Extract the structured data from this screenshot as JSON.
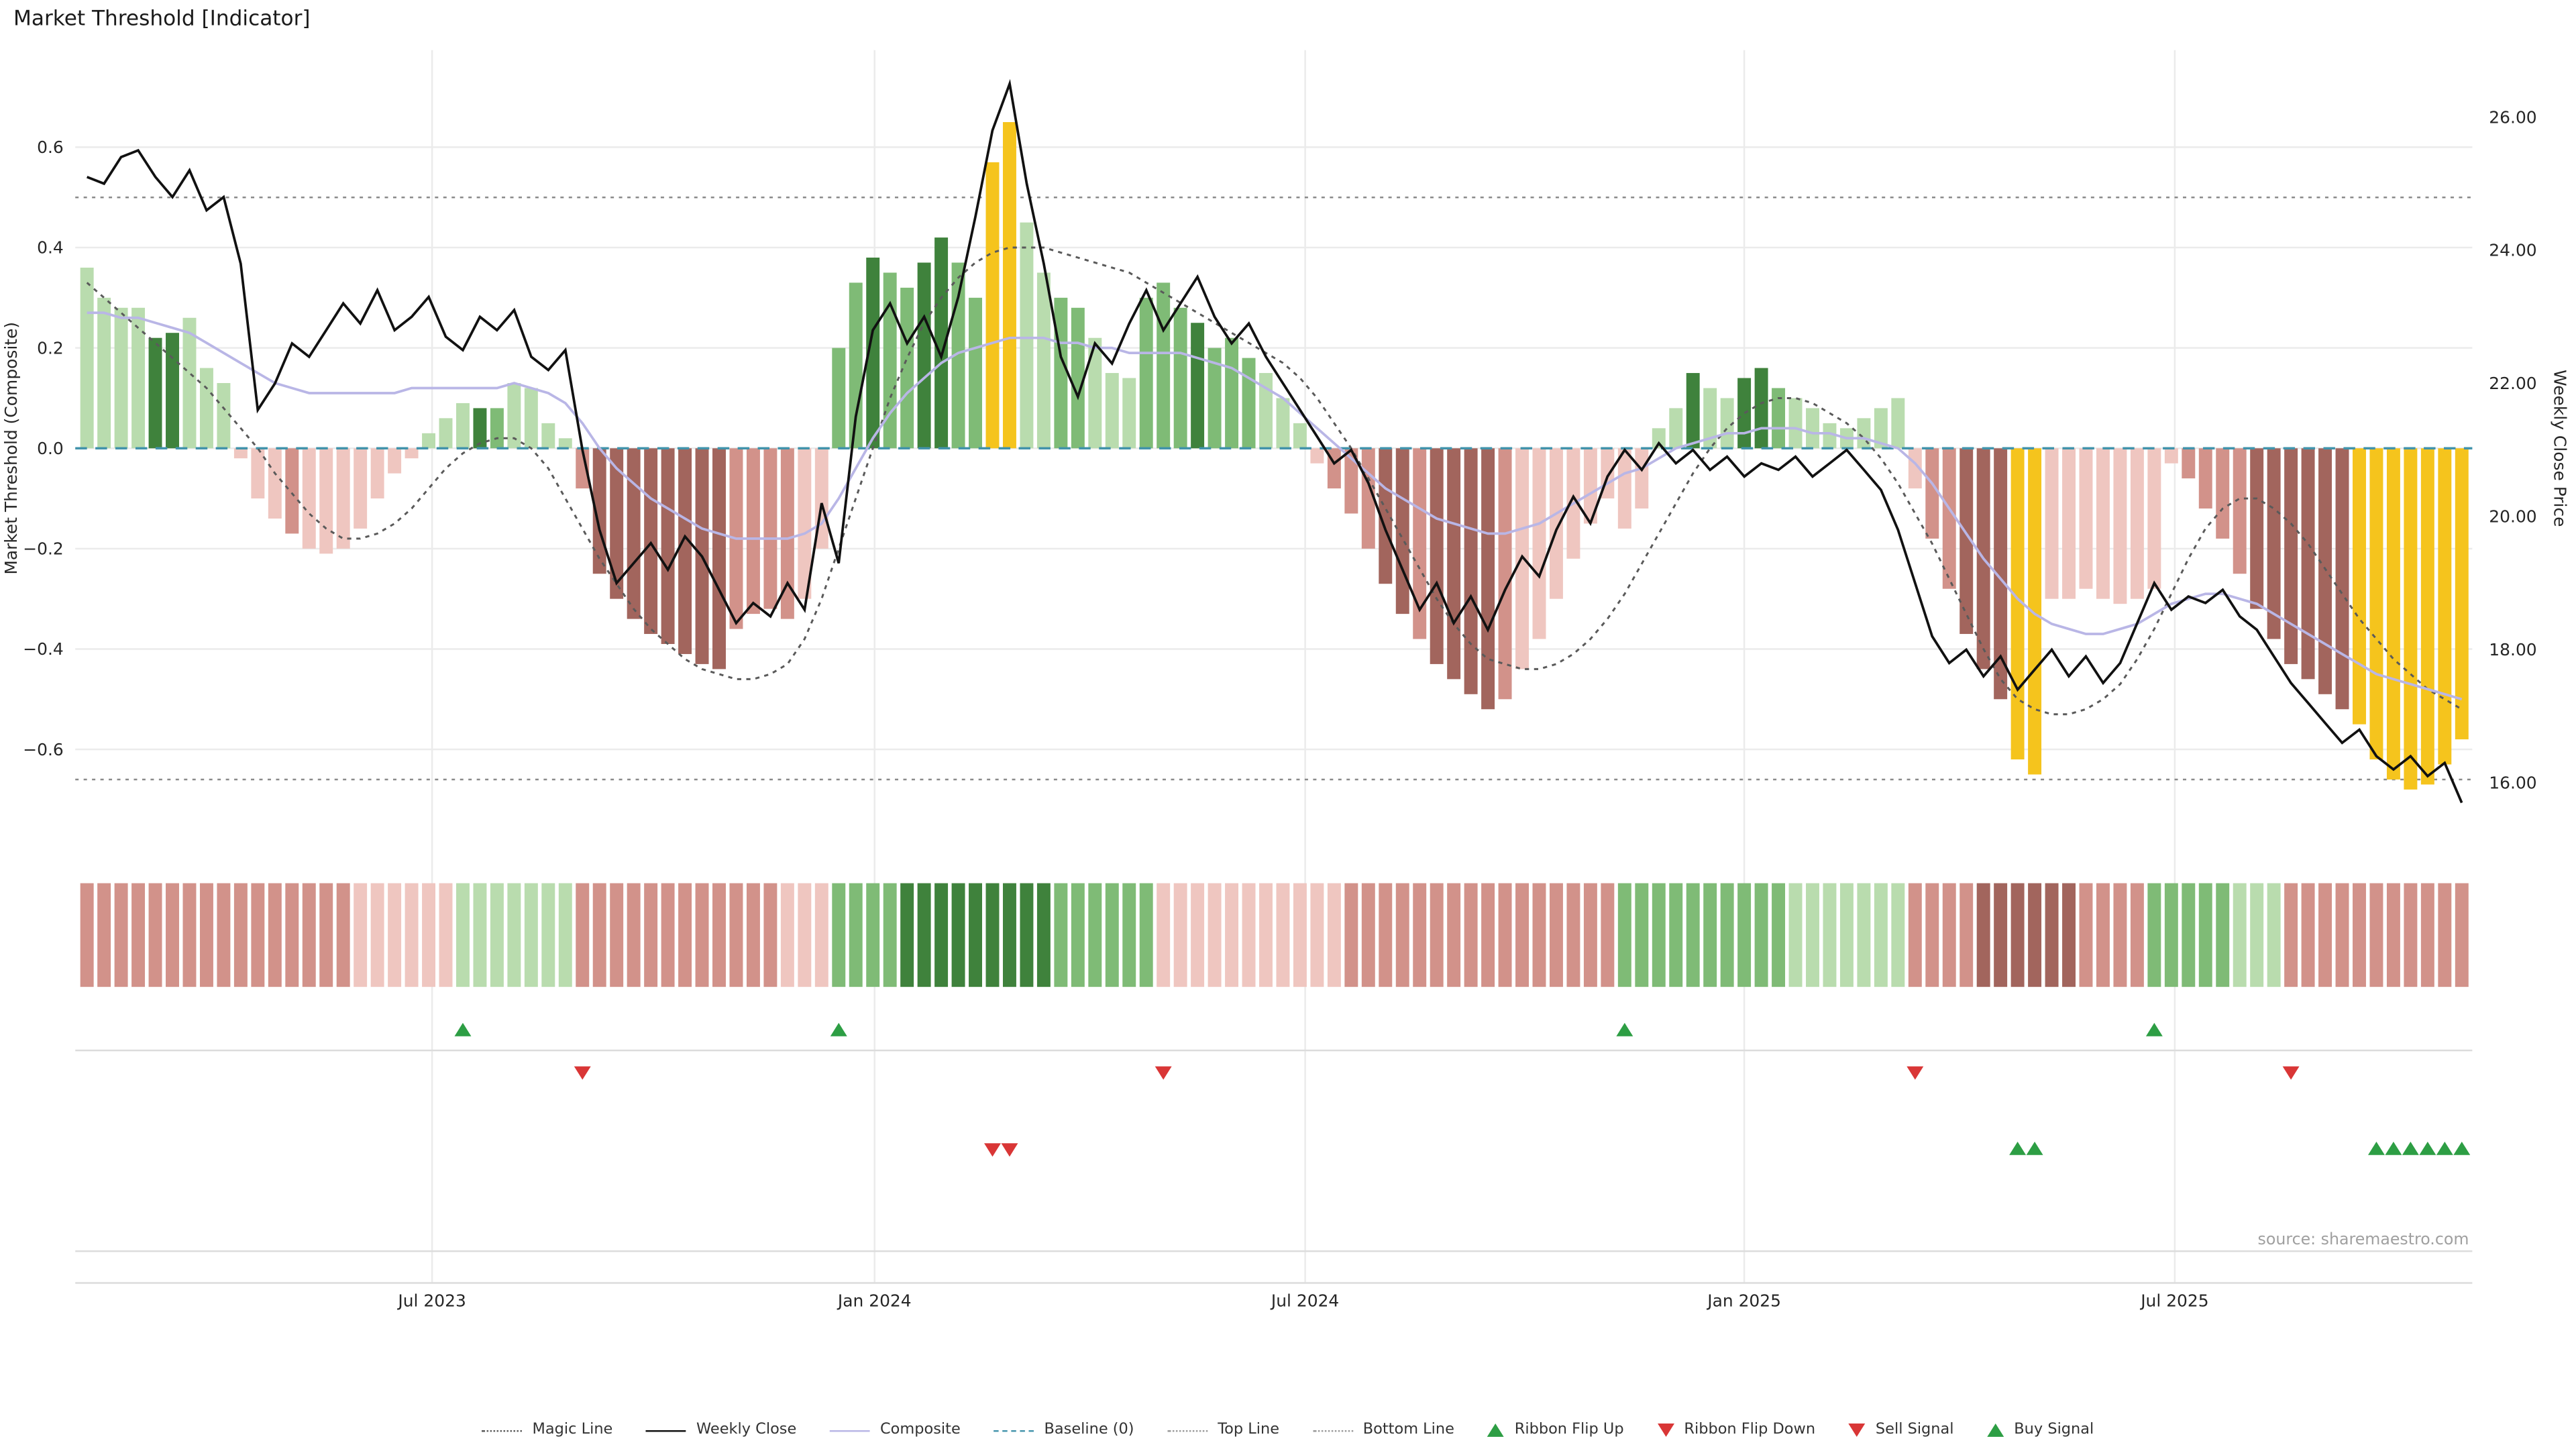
{
  "title": "Market Threshold [Indicator]",
  "source": "source: sharemaestro.com",
  "axes": {
    "left_label": "Market Threshold (Composite)",
    "right_label": "Weekly Close Price",
    "left_tick_values": [
      0.6,
      0.4,
      0.2,
      0,
      -0.2,
      -0.4,
      -0.6
    ],
    "left_tick_labels": [
      "0.6",
      "0.4",
      "0.2",
      "0.0",
      "−0.2",
      "−0.4",
      "−0.6"
    ],
    "right_tick_values": [
      26,
      24,
      22,
      20,
      18,
      16
    ],
    "right_tick_labels": [
      "26.00",
      "24.00",
      "22.00",
      "20.00",
      "18.00",
      "16.00"
    ],
    "x_tick_labels": [
      "Jul 2023",
      "Jan 2024",
      "Jul 2024",
      "Jan 2025",
      "Jul 2025"
    ]
  },
  "legend": [
    {
      "label": "Magic Line",
      "swatch": "dotted",
      "color": "#5a5a5a"
    },
    {
      "label": "Weekly Close",
      "swatch": "solid",
      "color": "#111111"
    },
    {
      "label": "Composite",
      "swatch": "solid",
      "color": "#b9b6e6"
    },
    {
      "label": "Baseline (0)",
      "swatch": "dashed",
      "color": "#4293ab"
    },
    {
      "label": "Top Line",
      "swatch": "dotted",
      "color": "#999999"
    },
    {
      "label": "Bottom Line",
      "swatch": "dotted",
      "color": "#999999"
    },
    {
      "label": "Ribbon Flip Up",
      "swatch": "tri-up",
      "color": "#2d9e44"
    },
    {
      "label": "Ribbon Flip Down",
      "swatch": "tri-down",
      "color": "#d93636"
    },
    {
      "label": "Sell Signal",
      "swatch": "tri-down",
      "color": "#d93636"
    },
    {
      "label": "Buy Signal",
      "swatch": "tri-up",
      "color": "#2d9e44"
    }
  ],
  "chart_data": {
    "type": "bar+line",
    "x_unit": "weeks",
    "n_points": 140,
    "x_tick_indices": [
      20.2,
      46.1,
      71.3,
      97.0,
      122.2
    ],
    "left_axis_range": [
      -0.75,
      0.72
    ],
    "right_axis_range": [
      15.4,
      26.8
    ],
    "top_line": 0.5,
    "bottom_line": -0.66,
    "baseline": 0,
    "palette": {
      "g1": "#b9dcae",
      "g2": "#7fbb76",
      "g3": "#3f823c",
      "r1": "#efc6c0",
      "r2": "#d2928a",
      "r3": "#a2655d",
      "y": "#f5c41d",
      "baseline": "#4293ab",
      "composite": "#b9b6e6",
      "signal_up": "#2d9e44",
      "signal_down": "#d93636"
    },
    "bars": {
      "values": [
        0.36,
        0.3,
        0.28,
        0.28,
        0.22,
        0.23,
        0.26,
        0.16,
        0.13,
        -0.02,
        -0.1,
        -0.14,
        -0.17,
        -0.2,
        -0.21,
        -0.2,
        -0.16,
        -0.1,
        -0.05,
        -0.02,
        0.03,
        0.06,
        0.09,
        0.08,
        0.08,
        0.13,
        0.12,
        0.05,
        0.02,
        -0.08,
        -0.25,
        -0.3,
        -0.34,
        -0.37,
        -0.39,
        -0.41,
        -0.43,
        -0.44,
        -0.36,
        -0.33,
        -0.32,
        -0.34,
        -0.3,
        -0.2,
        0.2,
        0.33,
        0.38,
        0.35,
        0.32,
        0.37,
        0.42,
        0.37,
        0.3,
        0.57,
        0.65,
        0.45,
        0.35,
        0.3,
        0.28,
        0.22,
        0.15,
        0.14,
        0.3,
        0.33,
        0.28,
        0.25,
        0.2,
        0.22,
        0.18,
        0.15,
        0.1,
        0.05,
        -0.03,
        -0.08,
        -0.13,
        -0.2,
        -0.27,
        -0.33,
        -0.38,
        -0.43,
        -0.46,
        -0.49,
        -0.52,
        -0.5,
        -0.44,
        -0.38,
        -0.3,
        -0.22,
        -0.15,
        -0.1,
        -0.16,
        -0.12,
        0.04,
        0.08,
        0.15,
        0.12,
        0.1,
        0.14,
        0.16,
        0.12,
        0.1,
        0.08,
        0.05,
        0.04,
        0.06,
        0.08,
        0.1,
        -0.08,
        -0.18,
        -0.28,
        -0.37,
        -0.44,
        -0.5,
        -0.62,
        -0.65,
        -0.3,
        -0.3,
        -0.28,
        -0.3,
        -0.31,
        -0.3,
        -0.28,
        -0.03,
        -0.06,
        -0.12,
        -0.18,
        -0.25,
        -0.32,
        -0.38,
        -0.43,
        -0.46,
        -0.49,
        -0.52,
        -0.55,
        -0.62,
        -0.66,
        -0.68,
        -0.67,
        -0.63,
        -0.58
      ],
      "colors": [
        "g1",
        "g1",
        "g1",
        "g1",
        "g3",
        "g3",
        "g1",
        "g1",
        "g1",
        "r1",
        "r1",
        "r1",
        "r2",
        "r1",
        "r1",
        "r1",
        "r1",
        "r1",
        "r1",
        "r1",
        "g1",
        "g1",
        "g1",
        "g3",
        "g2",
        "g1",
        "g1",
        "g1",
        "g1",
        "r2",
        "r3",
        "r3",
        "r3",
        "r3",
        "r3",
        "r3",
        "r3",
        "r3",
        "r2",
        "r2",
        "r2",
        "r2",
        "r1",
        "r1",
        "g2",
        "g2",
        "g3",
        "g2",
        "g2",
        "g3",
        "g3",
        "g2",
        "g2",
        "y",
        "y",
        "g1",
        "g1",
        "g2",
        "g2",
        "g1",
        "g1",
        "g1",
        "g2",
        "g2",
        "g2",
        "g3",
        "g2",
        "g2",
        "g2",
        "g1",
        "g1",
        "g1",
        "r1",
        "r2",
        "r2",
        "r2",
        "r3",
        "r3",
        "r2",
        "r3",
        "r3",
        "r3",
        "r3",
        "r2",
        "r1",
        "r1",
        "r1",
        "r1",
        "r1",
        "r1",
        "r1",
        "r1",
        "g1",
        "g1",
        "g3",
        "g1",
        "g1",
        "g3",
        "g3",
        "g2",
        "g1",
        "g1",
        "g1",
        "g1",
        "g1",
        "g1",
        "g1",
        "r1",
        "r2",
        "r2",
        "r3",
        "r3",
        "r3",
        "y",
        "y",
        "r1",
        "r1",
        "r1",
        "r1",
        "r1",
        "r1",
        "r1",
        "r1",
        "r2",
        "r2",
        "r2",
        "r2",
        "r3",
        "r3",
        "r3",
        "r3",
        "r3",
        "r3",
        "y",
        "y",
        "y",
        "y",
        "y",
        "y",
        "y"
      ]
    },
    "weekly_close": [
      25.1,
      25.0,
      25.4,
      25.5,
      25.1,
      24.8,
      25.2,
      24.6,
      24.8,
      23.8,
      21.6,
      22.0,
      22.6,
      22.4,
      22.8,
      23.2,
      22.9,
      23.4,
      22.8,
      23.0,
      23.3,
      22.7,
      22.5,
      23.0,
      22.8,
      23.1,
      22.4,
      22.2,
      22.5,
      21.0,
      19.8,
      19.0,
      19.3,
      19.6,
      19.2,
      19.7,
      19.4,
      18.9,
      18.4,
      18.7,
      18.5,
      19.0,
      18.6,
      20.2,
      19.3,
      21.5,
      22.8,
      23.2,
      22.6,
      23.0,
      22.4,
      23.3,
      24.5,
      25.8,
      26.5,
      25.0,
      23.8,
      22.4,
      21.8,
      22.6,
      22.3,
      22.9,
      23.4,
      22.8,
      23.2,
      23.6,
      23.0,
      22.6,
      22.9,
      22.4,
      22.0,
      21.6,
      21.2,
      20.8,
      21.0,
      20.5,
      19.8,
      19.2,
      18.6,
      19.0,
      18.4,
      18.8,
      18.3,
      18.9,
      19.4,
      19.1,
      19.8,
      20.3,
      19.9,
      20.6,
      21.0,
      20.7,
      21.1,
      20.8,
      21.0,
      20.7,
      20.9,
      20.6,
      20.8,
      20.7,
      20.9,
      20.6,
      20.8,
      21.0,
      20.7,
      20.4,
      19.8,
      19.0,
      18.2,
      17.8,
      18.0,
      17.6,
      17.9,
      17.4,
      17.7,
      18.0,
      17.6,
      17.9,
      17.5,
      17.8,
      18.4,
      19.0,
      18.6,
      18.8,
      18.7,
      18.9,
      18.5,
      18.3,
      17.9,
      17.5,
      17.2,
      16.9,
      16.6,
      16.8,
      16.4,
      16.2,
      16.4,
      16.1,
      16.3,
      15.7
    ],
    "composite": [
      0.27,
      0.27,
      0.26,
      0.26,
      0.25,
      0.24,
      0.23,
      0.21,
      0.19,
      0.17,
      0.15,
      0.13,
      0.12,
      0.11,
      0.11,
      0.11,
      0.11,
      0.11,
      0.11,
      0.12,
      0.12,
      0.12,
      0.12,
      0.12,
      0.12,
      0.13,
      0.12,
      0.11,
      0.09,
      0.05,
      0.0,
      -0.04,
      -0.07,
      -0.1,
      -0.12,
      -0.14,
      -0.16,
      -0.17,
      -0.18,
      -0.18,
      -0.18,
      -0.18,
      -0.17,
      -0.15,
      -0.1,
      -0.04,
      0.02,
      0.07,
      0.11,
      0.14,
      0.17,
      0.19,
      0.2,
      0.21,
      0.22,
      0.22,
      0.22,
      0.21,
      0.21,
      0.2,
      0.2,
      0.19,
      0.19,
      0.19,
      0.19,
      0.18,
      0.17,
      0.16,
      0.14,
      0.12,
      0.1,
      0.07,
      0.04,
      0.01,
      -0.02,
      -0.05,
      -0.08,
      -0.1,
      -0.12,
      -0.14,
      -0.15,
      -0.16,
      -0.17,
      -0.17,
      -0.16,
      -0.15,
      -0.13,
      -0.11,
      -0.09,
      -0.07,
      -0.05,
      -0.04,
      -0.02,
      0.0,
      0.01,
      0.02,
      0.03,
      0.03,
      0.04,
      0.04,
      0.04,
      0.03,
      0.03,
      0.02,
      0.02,
      0.01,
      0.0,
      -0.03,
      -0.07,
      -0.12,
      -0.17,
      -0.22,
      -0.26,
      -0.3,
      -0.33,
      -0.35,
      -0.36,
      -0.37,
      -0.37,
      -0.36,
      -0.35,
      -0.33,
      -0.31,
      -0.3,
      -0.29,
      -0.29,
      -0.3,
      -0.31,
      -0.33,
      -0.35,
      -0.37,
      -0.39,
      -0.41,
      -0.43,
      -0.45,
      -0.46,
      -0.47,
      -0.48,
      -0.49,
      -0.5
    ],
    "magic_line": [
      0.33,
      0.3,
      0.27,
      0.24,
      0.21,
      0.18,
      0.15,
      0.12,
      0.08,
      0.04,
      0.0,
      -0.05,
      -0.09,
      -0.13,
      -0.16,
      -0.18,
      -0.18,
      -0.17,
      -0.15,
      -0.12,
      -0.08,
      -0.04,
      -0.01,
      0.01,
      0.02,
      0.02,
      0.0,
      -0.04,
      -0.1,
      -0.16,
      -0.22,
      -0.27,
      -0.32,
      -0.36,
      -0.39,
      -0.42,
      -0.44,
      -0.45,
      -0.46,
      -0.46,
      -0.45,
      -0.43,
      -0.38,
      -0.3,
      -0.2,
      -0.1,
      0.0,
      0.1,
      0.18,
      0.25,
      0.3,
      0.34,
      0.37,
      0.39,
      0.4,
      0.4,
      0.4,
      0.39,
      0.38,
      0.37,
      0.36,
      0.35,
      0.33,
      0.31,
      0.29,
      0.27,
      0.25,
      0.23,
      0.21,
      0.19,
      0.17,
      0.14,
      0.1,
      0.05,
      0.0,
      -0.06,
      -0.12,
      -0.18,
      -0.24,
      -0.3,
      -0.35,
      -0.39,
      -0.42,
      -0.43,
      -0.44,
      -0.44,
      -0.43,
      -0.41,
      -0.38,
      -0.34,
      -0.29,
      -0.23,
      -0.17,
      -0.11,
      -0.05,
      0.0,
      0.04,
      0.07,
      0.09,
      0.1,
      0.1,
      0.09,
      0.07,
      0.05,
      0.02,
      -0.02,
      -0.07,
      -0.13,
      -0.19,
      -0.26,
      -0.33,
      -0.4,
      -0.46,
      -0.5,
      -0.52,
      -0.53,
      -0.53,
      -0.52,
      -0.5,
      -0.47,
      -0.42,
      -0.36,
      -0.29,
      -0.22,
      -0.16,
      -0.12,
      -0.1,
      -0.1,
      -0.12,
      -0.15,
      -0.19,
      -0.24,
      -0.29,
      -0.34,
      -0.38,
      -0.42,
      -0.45,
      -0.48,
      -0.5,
      -0.52
    ],
    "ribbon": [
      "r2",
      "r2",
      "r2",
      "r2",
      "r2",
      "r2",
      "r2",
      "r2",
      "r2",
      "r2",
      "r2",
      "r2",
      "r2",
      "r2",
      "r2",
      "r2",
      "r1",
      "r1",
      "r1",
      "r1",
      "r1",
      "r1",
      "g1",
      "g1",
      "g1",
      "g1",
      "g1",
      "g1",
      "g1",
      "r2",
      "r2",
      "r2",
      "r2",
      "r2",
      "r2",
      "r2",
      "r2",
      "r2",
      "r2",
      "r2",
      "r2",
      "r1",
      "r1",
      "r1",
      "g2",
      "g2",
      "g2",
      "g2",
      "g3",
      "g3",
      "g3",
      "g3",
      "g3",
      "g3",
      "g3",
      "g3",
      "g3",
      "g2",
      "g2",
      "g2",
      "g2",
      "g2",
      "g2",
      "r1",
      "r1",
      "r1",
      "r1",
      "r1",
      "r1",
      "r1",
      "r1",
      "r1",
      "r1",
      "r1",
      "r2",
      "r2",
      "r2",
      "r2",
      "r2",
      "r2",
      "r2",
      "r2",
      "r2",
      "r2",
      "r2",
      "r2",
      "r2",
      "r2",
      "r2",
      "r2",
      "g2",
      "g2",
      "g2",
      "g2",
      "g2",
      "g2",
      "g2",
      "g2",
      "g2",
      "g2",
      "g1",
      "g1",
      "g1",
      "g1",
      "g1",
      "g1",
      "g1",
      "r2",
      "r2",
      "r2",
      "r2",
      "r3",
      "r3",
      "r3",
      "r3",
      "r3",
      "r3",
      "r2",
      "r2",
      "r2",
      "r2",
      "g2",
      "g2",
      "g2",
      "g2",
      "g2",
      "g1",
      "g1",
      "g1",
      "r2",
      "r2",
      "r2",
      "r2",
      "r2",
      "r2",
      "r2",
      "r2",
      "r2",
      "r2",
      "r2"
    ],
    "signals": {
      "ribbon_flip_up": [
        22,
        44,
        90,
        121
      ],
      "ribbon_flip_down": [
        29,
        63,
        107,
        129
      ],
      "sell": [
        53,
        54
      ],
      "buy": [
        113,
        114,
        134,
        135,
        136,
        137,
        138,
        139
      ]
    }
  }
}
